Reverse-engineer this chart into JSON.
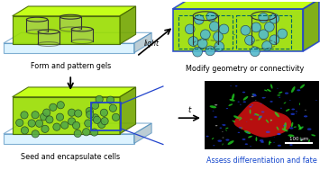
{
  "bg_color": "#ffffff",
  "panel_labels": {
    "top_left": "Form and pattern gels",
    "top_right": "Modify geometry or connectivity",
    "bottom_left": "Seed and encapsulate cells",
    "bottom_right": "Assess differentiation and fate"
  },
  "label_colors": {
    "top_left": "#000000",
    "top_right": "#000000",
    "bottom_left": "#000000",
    "bottom_right": "#1144cc"
  },
  "gel_color": "#99dd00",
  "gel_color_light": "#ccee66",
  "gel_edge_color": "#446600",
  "platform_color_top": "#cceeff",
  "platform_color_side": "#88bbdd",
  "platform_edge": "#4488bb",
  "cylinder_fill": "#e8e8e8",
  "cylinder_edge": "#222222",
  "cell_teal_fill": "#55bbcc",
  "cell_teal_edge": "#224455",
  "cell_green_fill": "#55aa44",
  "cell_green_edge": "#224422",
  "blue_outline": "#2244cc",
  "scale_bar_text": "100 μm"
}
